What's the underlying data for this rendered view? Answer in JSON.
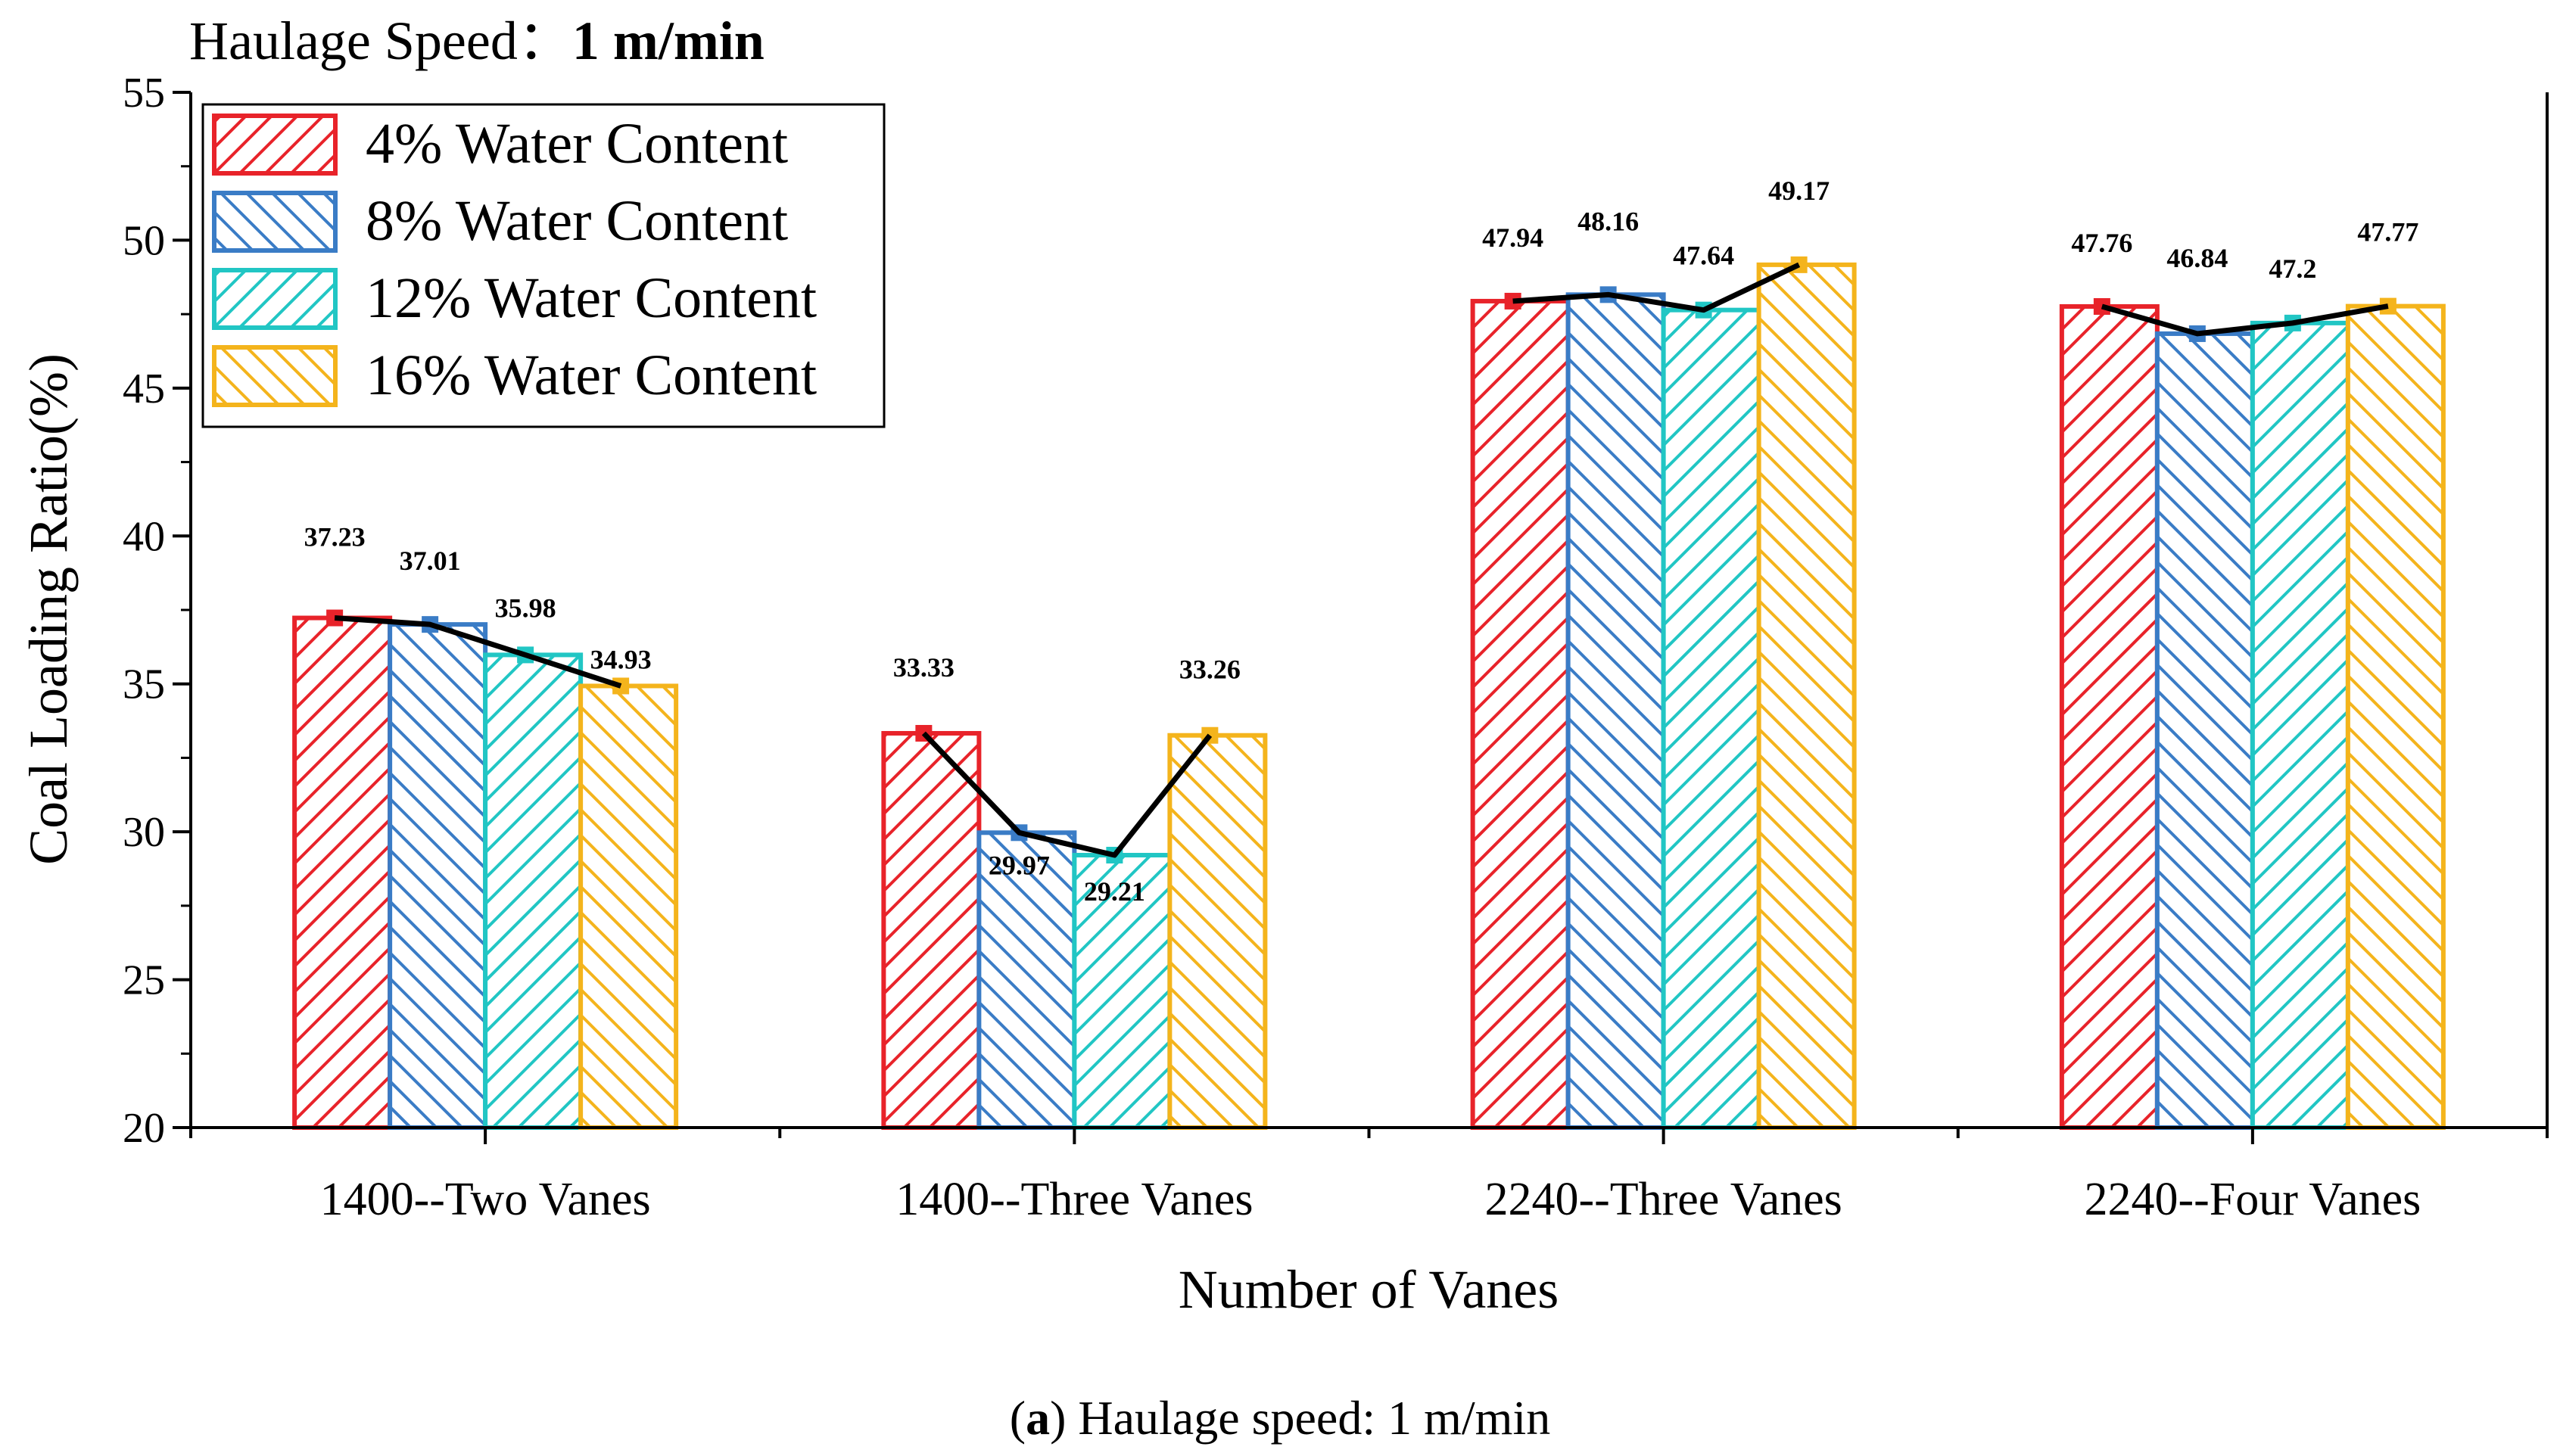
{
  "chart_data": {
    "type": "bar",
    "title_prefix": "Haulage Speed：",
    "title_value": "1 m/min",
    "caption_letter": "a",
    "caption_text": " Haulage speed: 1 m/min",
    "xlabel": "Number of Vanes",
    "ylabel": "Coal Loading Ratio(%)",
    "ylim": [
      20,
      55
    ],
    "yticks": [
      20,
      25,
      30,
      35,
      40,
      45,
      50,
      55
    ],
    "categories": [
      "1400--Two Vanes",
      "1400--Three Vanes",
      "2240--Three Vanes",
      "2240--Four Vanes"
    ],
    "series": [
      {
        "name": "4% Water Content",
        "color": "#e8232a",
        "hatch": "forward",
        "values": [
          37.23,
          33.33,
          47.94,
          47.76
        ]
      },
      {
        "name": "8% Water Content",
        "color": "#3a7cc6",
        "hatch": "back",
        "values": [
          37.01,
          29.97,
          48.16,
          46.84
        ]
      },
      {
        "name": "12% Water Content",
        "color": "#21c6c4",
        "hatch": "forward",
        "values": [
          35.98,
          29.21,
          47.64,
          47.2
        ]
      },
      {
        "name": "16% Water Content",
        "color": "#f4b41c",
        "hatch": "back",
        "values": [
          34.93,
          33.26,
          49.17,
          47.77
        ]
      }
    ],
    "data_labels": [
      [
        "37.23",
        "37.01",
        "35.98",
        "34.93"
      ],
      [
        "33.33",
        "29.97",
        "29.21",
        "33.26"
      ],
      [
        "47.94",
        "48.16",
        "47.64",
        "49.17"
      ],
      [
        "47.76",
        "46.84",
        "47.2",
        "47.77"
      ]
    ],
    "trend_line_color": "#000000",
    "legend_position": "top-left",
    "grid": false
  }
}
